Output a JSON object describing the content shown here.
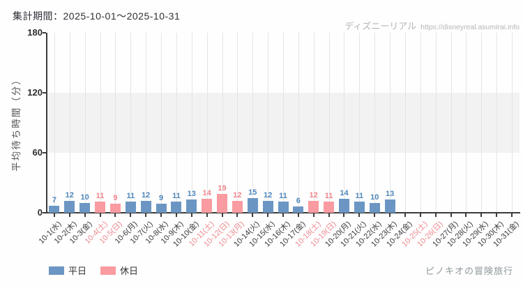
{
  "header": {
    "period_label": "集計期間：2025-10-01～2025-10-31"
  },
  "watermark": {
    "site_name": "ディズニーリアル",
    "site_url": "https://disneyreal.asumirai.info"
  },
  "footer": {
    "attraction_name": "ピノキオの冒険旅行"
  },
  "legend": {
    "items": [
      {
        "label": "平日",
        "color": "#6b96c3"
      },
      {
        "label": "休日",
        "color": "#f99ba1"
      }
    ]
  },
  "chart_data": {
    "type": "bar",
    "title": "",
    "xlabel": "",
    "ylabel": "平均待ち時間（分）",
    "ylim": [
      0,
      180
    ],
    "yticks": [
      0,
      60,
      120,
      180
    ],
    "grid": "vertical gridline per day; shaded horizontal band between 60 and 120",
    "legend_position": "bottom-left",
    "categories": [
      "10-1(水)",
      "10-2(木)",
      "10-3(金)",
      "10-4(土)",
      "10-5(日)",
      "10-6(月)",
      "10-7(火)",
      "10-8(水)",
      "10-9(木)",
      "10-10(金)",
      "10-11(土)",
      "10-12(日)",
      "10-13(月)",
      "10-14(火)",
      "10-15(水)",
      "10-16(木)",
      "10-17(金)",
      "10-18(土)",
      "10-19(日)",
      "10-20(月)",
      "10-21(火)",
      "10-22(水)",
      "10-23(木)",
      "10-24(金)",
      "10-25(土)",
      "10-26(日)",
      "10-27(月)",
      "10-28(火)",
      "10-29(水)",
      "10-30(木)",
      "10-31(金)"
    ],
    "values": [
      7,
      12,
      10,
      11,
      9,
      11,
      12,
      9,
      11,
      13,
      14,
      19,
      12,
      15,
      12,
      11,
      6,
      12,
      11,
      14,
      11,
      10,
      13,
      null,
      null,
      null,
      null,
      null,
      null,
      null,
      null
    ],
    "day_type": [
      "weekday",
      "weekday",
      "weekday",
      "holiday",
      "holiday",
      "weekday",
      "weekday",
      "weekday",
      "weekday",
      "weekday",
      "holiday",
      "holiday",
      "holiday",
      "weekday",
      "weekday",
      "weekday",
      "weekday",
      "holiday",
      "holiday",
      "weekday",
      "weekday",
      "weekday",
      "weekday",
      "weekday",
      "holiday",
      "holiday",
      "weekday",
      "weekday",
      "weekday",
      "weekday",
      "weekday"
    ],
    "colors": {
      "weekday_bar": "#6b96c3",
      "holiday_bar": "#f99ba1",
      "weekday_value_label": "#4d86bd",
      "holiday_value_label": "#f2838c",
      "weekday_tick_label": "#3a3a3a",
      "holiday_tick_label": "#ef8a92"
    }
  }
}
